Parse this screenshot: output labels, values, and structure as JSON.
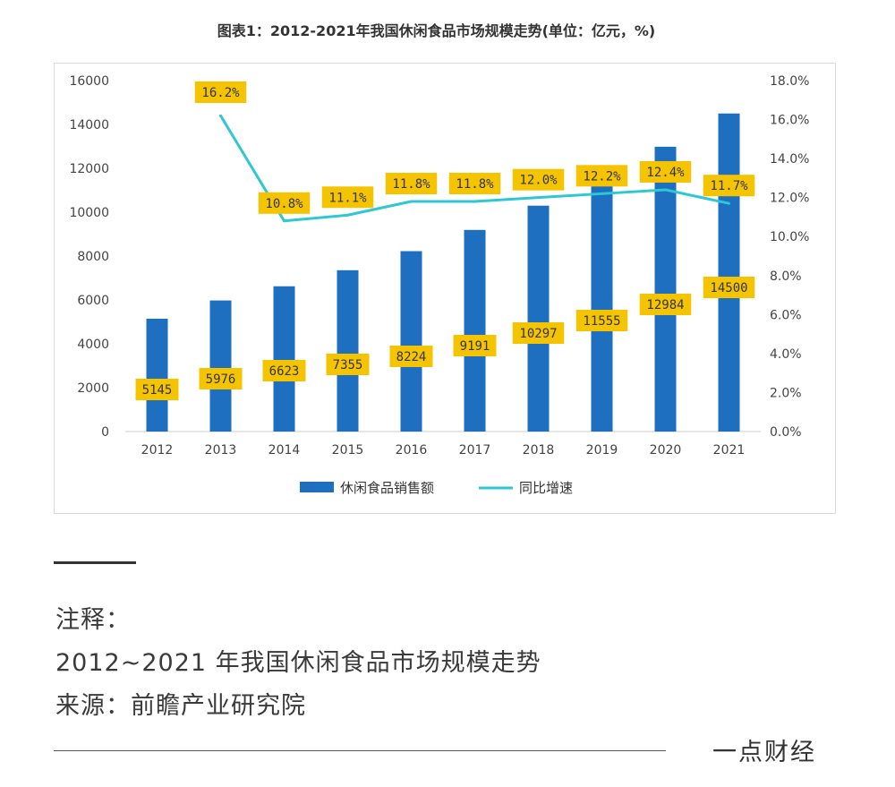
{
  "chart_data": {
    "type": "bar",
    "title": "图表1：2012-2021年我国休闲食品市场规模走势(单位：亿元，%)",
    "categories": [
      "2012",
      "2013",
      "2014",
      "2015",
      "2016",
      "2017",
      "2018",
      "2019",
      "2020",
      "2021"
    ],
    "series": [
      {
        "name": "休闲食品销售额",
        "type": "bar",
        "axis": "left",
        "values": [
          5145,
          5976,
          6623,
          7355,
          8224,
          9191,
          10297,
          11555,
          12984,
          14500
        ],
        "labels": [
          "5145",
          "5976",
          "6623",
          "7355",
          "8224",
          "9191",
          "10297",
          "11555",
          "12984",
          "14500"
        ]
      },
      {
        "name": "同比增速",
        "type": "line",
        "axis": "right",
        "values": [
          null,
          16.2,
          10.8,
          11.1,
          11.8,
          11.8,
          12.0,
          12.2,
          12.4,
          11.7
        ],
        "labels": [
          "",
          "16.2%",
          "10.8%",
          "11.1%",
          "11.8%",
          "11.8%",
          "12.0%",
          "12.2%",
          "12.4%",
          "11.7%"
        ]
      }
    ],
    "ylim": [
      0,
      16000
    ],
    "y2lim": [
      0,
      18
    ],
    "yticks": [
      "0",
      "2000",
      "4000",
      "6000",
      "8000",
      "10000",
      "12000",
      "14000",
      "16000"
    ],
    "y2ticks": [
      "0.0%",
      "2.0%",
      "4.0%",
      "6.0%",
      "8.0%",
      "10.0%",
      "12.0%",
      "14.0%",
      "16.0%",
      "18.0%"
    ],
    "legend_position": "bottom",
    "grid": false
  },
  "colors": {
    "bar": "#1f6fc1",
    "line": "#2ec8d2",
    "label_bg": "#f5c400",
    "label_text": "#333333"
  },
  "notes": {
    "heading": "注释：",
    "line1": "2012~2021 年我国休闲食品市场规模走势",
    "line2": "来源：前瞻产业研究院"
  },
  "brand": "一点财经"
}
